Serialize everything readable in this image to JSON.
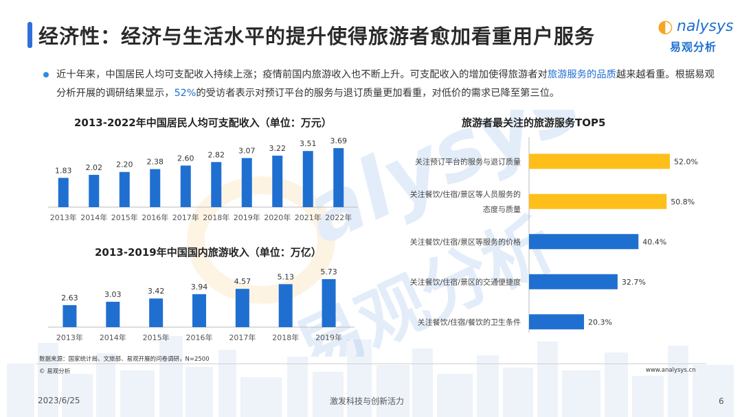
{
  "title": "经济性：经济与生活水平的提升使得旅游者愈加看重用户服务",
  "logo": {
    "en": "nalysys",
    "cn": "易观分析"
  },
  "intro": {
    "part1": "近十年来，中国居民人均可支配收入持续上涨；疫情前国内旅游收入也不断上升。可支配收入的增加使得旅游者对",
    "highlight1": "旅游服务的品质",
    "part2": "越来越看重。根据易观分析开展的调研结果显示，",
    "highlight2": "52%",
    "part3": "的受访者表示对预订平台的服务与退订质量更加看重，对低价的需求已降至第三位。"
  },
  "chart_data": [
    {
      "type": "bar",
      "title": "2013-2022年中国居民人均可支配收入（单位：万元）",
      "categories": [
        "2013年",
        "2014年",
        "2015年",
        "2016年",
        "2017年",
        "2018年",
        "2019年",
        "2020年",
        "2021年",
        "2022年"
      ],
      "values": [
        1.83,
        2.02,
        2.2,
        2.38,
        2.6,
        2.82,
        3.07,
        3.22,
        3.51,
        3.69
      ],
      "labels": [
        "1.83",
        "2.02",
        "2.20",
        "2.38",
        "2.60",
        "2.82",
        "3.07",
        "3.22",
        "3.51",
        "3.69"
      ],
      "color": "#1f6fd1"
    },
    {
      "type": "bar",
      "title": "2013-2019年中国国内旅游收入（单位：万亿）",
      "categories": [
        "2013年",
        "2014年",
        "2015年",
        "2016年",
        "2017年",
        "2018年",
        "2019年"
      ],
      "values": [
        2.63,
        3.03,
        3.42,
        3.94,
        4.57,
        5.13,
        5.73
      ],
      "labels": [
        "2.63",
        "3.03",
        "3.42",
        "3.94",
        "4.57",
        "5.13",
        "5.73"
      ],
      "color": "#1f6fd1"
    },
    {
      "type": "bar",
      "orientation": "horizontal",
      "title": "旅游者最关注的旅游服务TOP5",
      "categories": [
        [
          "关注预订平台的服务与退订质量"
        ],
        [
          "关注餐饮/住宿/景区等人员服务的",
          "态度与质量"
        ],
        [
          "关注餐饮/住宿/景区等服务的价格"
        ],
        [
          "关注餐饮/住宿/景区的交通便捷度"
        ],
        [
          "关注餐饮/住宿/餐饮的卫生条件"
        ]
      ],
      "values": [
        52.0,
        50.8,
        40.4,
        32.7,
        20.3
      ],
      "labels": [
        "52.0%",
        "50.8%",
        "40.4%",
        "32.7%",
        "20.3%"
      ],
      "colors": [
        "#ffbf1a",
        "#ffbf1a",
        "#1f6fd1",
        "#1f6fd1",
        "#1f6fd1"
      ]
    }
  ],
  "source_note": "数据来源：国家统计局、文旅部、易观开展的问卷调研，N=2500",
  "copyright": "© 易观分析",
  "website": "www.analysys.cn",
  "footer": {
    "date": "2023/6/25",
    "slogan": "激发科技与创新活力",
    "page": "6"
  }
}
